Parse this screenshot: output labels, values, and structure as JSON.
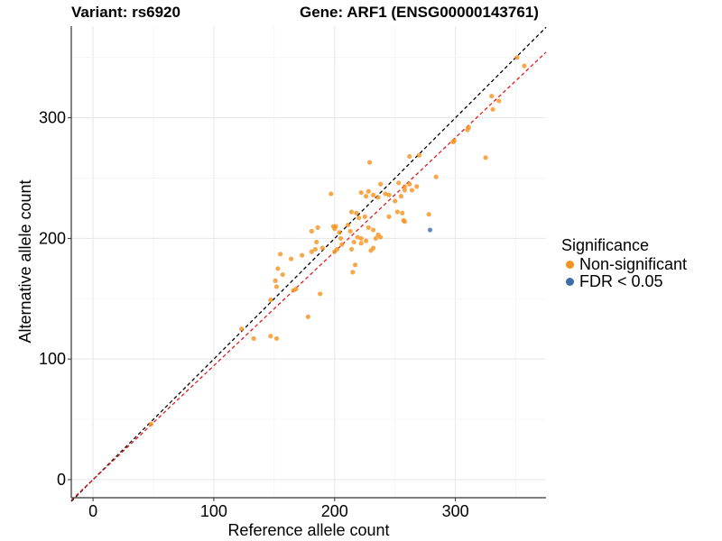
{
  "titles": {
    "left": "Variant: rs6920",
    "right": "Gene: ARF1 (ENSG00000143761)"
  },
  "legend": {
    "title": "Significance",
    "items": [
      {
        "label": "Non-significant",
        "color": "#f5921e"
      },
      {
        "label": "FDR < 0.05",
        "color": "#3b6eab"
      }
    ]
  },
  "chart_data": {
    "type": "scatter",
    "xlabel": "Reference allele count",
    "ylabel": "Alternative allele count",
    "xlim": [
      -18,
      375
    ],
    "ylim": [
      -15,
      376
    ],
    "xticks": [
      0,
      100,
      200,
      300
    ],
    "yticks": [
      0,
      100,
      200,
      300
    ],
    "grid": true,
    "reference_lines": [
      {
        "kind": "identity",
        "slope": 1,
        "intercept": 0,
        "color": "#000000",
        "style": "dashed"
      },
      {
        "kind": "fit",
        "slope": 0.945,
        "intercept": 0,
        "color": "#e31a1c",
        "style": "dashed"
      }
    ],
    "series": [
      {
        "name": "Non-significant",
        "color": "#f5921e",
        "points": [
          [
            351,
            350
          ],
          [
            357,
            343
          ],
          [
            330,
            318
          ],
          [
            336,
            314
          ],
          [
            331,
            307
          ],
          [
            310,
            290
          ],
          [
            298,
            280
          ],
          [
            325,
            267
          ],
          [
            284,
            251
          ],
          [
            229,
            263
          ],
          [
            262,
            268
          ],
          [
            270,
            269
          ],
          [
            262,
            245
          ],
          [
            264,
            240
          ],
          [
            268,
            243
          ],
          [
            258,
            243
          ],
          [
            253,
            246
          ],
          [
            258,
            240
          ],
          [
            255,
            235
          ],
          [
            238,
            245
          ],
          [
            232,
            236
          ],
          [
            236,
            234
          ],
          [
            242,
            237
          ],
          [
            245,
            236
          ],
          [
            250,
            231
          ],
          [
            228,
            239
          ],
          [
            226,
            235
          ],
          [
            222,
            238
          ],
          [
            197,
            237
          ],
          [
            214,
            222
          ],
          [
            218,
            221
          ],
          [
            220,
            217
          ],
          [
            225,
            218
          ],
          [
            245,
            218
          ],
          [
            252,
            222
          ],
          [
            256,
            221
          ],
          [
            257,
            215
          ],
          [
            258,
            214
          ],
          [
            278,
            220
          ],
          [
            211,
            211
          ],
          [
            199,
            210
          ],
          [
            200,
            208
          ],
          [
            201,
            210
          ],
          [
            186,
            209
          ],
          [
            181,
            206
          ],
          [
            228,
            209
          ],
          [
            232,
            207
          ],
          [
            236,
            203
          ],
          [
            234,
            200
          ],
          [
            238,
            201
          ],
          [
            213,
            206
          ],
          [
            219,
            201
          ],
          [
            216,
            197
          ],
          [
            222,
            200
          ],
          [
            204,
            205
          ],
          [
            205,
            200
          ],
          [
            206,
            195
          ],
          [
            202,
            191
          ],
          [
            200,
            189
          ],
          [
            190,
            192
          ],
          [
            185,
            197
          ],
          [
            184,
            191
          ],
          [
            214,
            191
          ],
          [
            230,
            190
          ],
          [
            232,
            192
          ],
          [
            222,
            196
          ],
          [
            226,
            198
          ],
          [
            217,
            178
          ],
          [
            215,
            172
          ],
          [
            155,
            187
          ],
          [
            164,
            183
          ],
          [
            173,
            186
          ],
          [
            181,
            189
          ],
          [
            153,
            175
          ],
          [
            157,
            170
          ],
          [
            151,
            165
          ],
          [
            152,
            160
          ],
          [
            168,
            158
          ],
          [
            166,
            157
          ],
          [
            188,
            154
          ],
          [
            147,
            149
          ],
          [
            178,
            135
          ],
          [
            123,
            125
          ],
          [
            147,
            119
          ],
          [
            152,
            117
          ],
          [
            133,
            117
          ],
          [
            48,
            46
          ],
          [
            299,
            281
          ],
          [
            311,
            292
          ]
        ]
      },
      {
        "name": "FDR < 0.05",
        "color": "#3b6eab",
        "points": [
          [
            279,
            207
          ]
        ]
      }
    ]
  }
}
